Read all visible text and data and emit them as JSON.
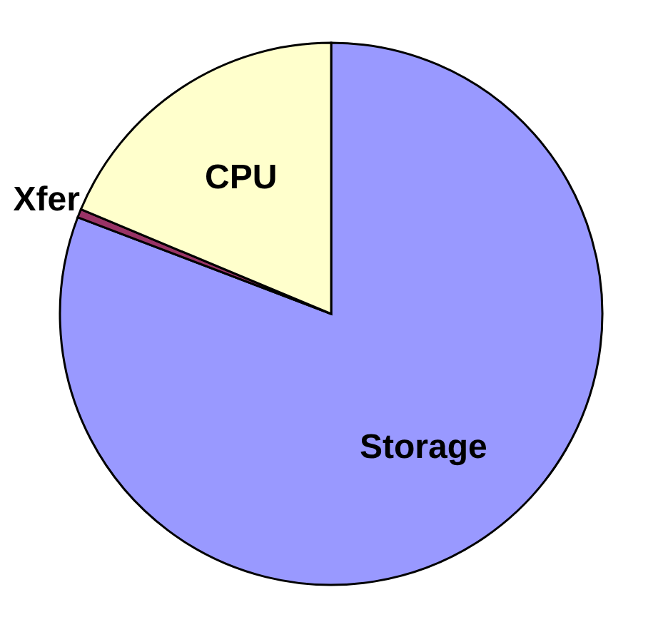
{
  "chart_data": {
    "type": "pie",
    "categories": [
      "Storage",
      "Xfer",
      "CPU"
    ],
    "values": [
      80.8,
      0.5,
      18.7
    ],
    "colors": [
      "#9999ff",
      "#993366",
      "#ffffcc"
    ]
  }
}
